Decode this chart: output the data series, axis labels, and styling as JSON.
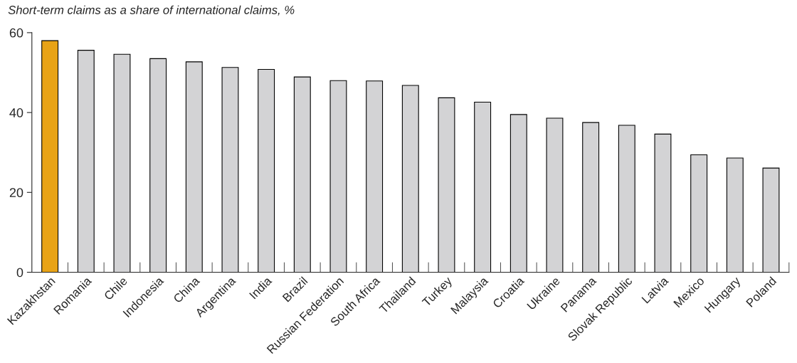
{
  "chart_data": {
    "type": "bar",
    "title": "Short-term claims as a share of international claims, %",
    "categories": [
      "Kazakhstan",
      "Romania",
      "Chile",
      "Indonesia",
      "China",
      "Argentina",
      "India",
      "Brazil",
      "Russian Federation",
      "South Africa",
      "Thailand",
      "Turkey",
      "Malaysia",
      "Croatia",
      "Ukraine",
      "Panama",
      "Slovak Republic",
      "Latvia",
      "Mexico",
      "Hungary",
      "Poland"
    ],
    "values": [
      58.0,
      55.6,
      54.6,
      53.5,
      52.7,
      51.3,
      50.8,
      48.9,
      48.0,
      47.9,
      46.8,
      43.7,
      42.6,
      39.5,
      38.6,
      37.5,
      36.8,
      34.6,
      29.4,
      28.6,
      26.1
    ],
    "colors": [
      "#e8a317",
      "#d3d3d5",
      "#d3d3d5",
      "#d3d3d5",
      "#d3d3d5",
      "#d3d3d5",
      "#d3d3d5",
      "#d3d3d5",
      "#d3d3d5",
      "#d3d3d5",
      "#d3d3d5",
      "#d3d3d5",
      "#d3d3d5",
      "#d3d3d5",
      "#d3d3d5",
      "#d3d3d5",
      "#d3d3d5",
      "#d3d3d5",
      "#d3d3d5",
      "#d3d3d5",
      "#d3d3d5"
    ],
    "ylim": [
      0,
      60
    ],
    "yticks": [
      0,
      20,
      40,
      60
    ],
    "grid": false,
    "legend": false
  }
}
